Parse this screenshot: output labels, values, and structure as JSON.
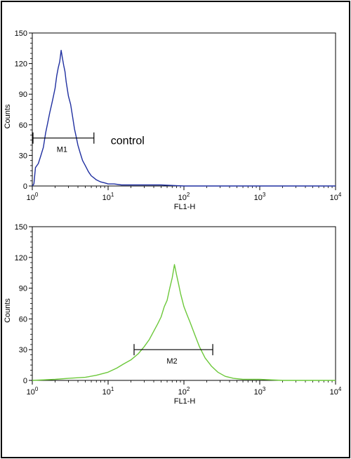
{
  "chart_data": [
    {
      "type": "line",
      "xscale": "log",
      "xlim": [
        1,
        10000
      ],
      "ylim": [
        0,
        150
      ],
      "xlabel": "FL1-H",
      "ylabel": "Counts",
      "yticks": [
        "0",
        "30",
        "60",
        "90",
        "120",
        "150"
      ],
      "xticks": [
        {
          "base": "10",
          "exp": "0"
        },
        {
          "base": "10",
          "exp": "1"
        },
        {
          "base": "10",
          "exp": "2"
        },
        {
          "base": "10",
          "exp": "3"
        },
        {
          "base": "10",
          "exp": "4"
        }
      ],
      "series": [
        {
          "color": "#1f2fa0",
          "x": [
            1.0,
            1.05,
            1.1,
            1.2,
            1.3,
            1.4,
            1.5,
            1.6,
            1.7,
            1.8,
            1.9,
            2.0,
            2.1,
            2.2,
            2.3,
            2.4,
            2.5,
            2.6,
            2.7,
            2.8,
            2.9,
            3.0,
            3.2,
            3.4,
            3.6,
            3.8,
            4.0,
            4.3,
            4.6,
            5.0,
            5.5,
            6.0,
            6.5,
            7.0,
            8.0,
            9.0,
            10,
            12,
            15,
            20,
            30,
            50,
            100,
            300,
            1000,
            10000
          ],
          "y": [
            0,
            2,
            18,
            22,
            30,
            38,
            52,
            62,
            72,
            80,
            88,
            96,
            108,
            116,
            122,
            133,
            125,
            118,
            112,
            102,
            95,
            88,
            80,
            68,
            56,
            48,
            40,
            32,
            25,
            20,
            14,
            10,
            8,
            6,
            4,
            3,
            2,
            2,
            1,
            1,
            1,
            1,
            0,
            0,
            0,
            0
          ]
        }
      ],
      "marker": {
        "label": "M1",
        "range": [
          1,
          6.5
        ],
        "level": 47
      },
      "annotation": "control"
    },
    {
      "type": "line",
      "xscale": "log",
      "xlim": [
        1,
        10000
      ],
      "ylim": [
        0,
        150
      ],
      "xlabel": "FL1-H",
      "ylabel": "Counts",
      "yticks": [
        "0",
        "30",
        "60",
        "90",
        "120",
        "150"
      ],
      "xticks": [
        {
          "base": "10",
          "exp": "0"
        },
        {
          "base": "10",
          "exp": "1"
        },
        {
          "base": "10",
          "exp": "2"
        },
        {
          "base": "10",
          "exp": "3"
        },
        {
          "base": "10",
          "exp": "4"
        }
      ],
      "series": [
        {
          "color": "#6cc83a",
          "x": [
            1,
            2,
            3,
            5,
            7,
            10,
            13,
            16,
            20,
            25,
            30,
            35,
            40,
            45,
            50,
            55,
            60,
            65,
            70,
            75,
            80,
            85,
            90,
            100,
            110,
            120,
            140,
            160,
            190,
            230,
            280,
            350,
            450,
            600,
            1000,
            2000,
            10000
          ],
          "y": [
            0,
            1,
            2,
            3,
            5,
            8,
            12,
            16,
            20,
            26,
            33,
            40,
            48,
            55,
            62,
            72,
            78,
            90,
            100,
            113,
            103,
            94,
            85,
            72,
            64,
            57,
            44,
            33,
            22,
            14,
            8,
            4,
            2,
            1,
            1,
            0,
            0
          ]
        }
      ],
      "marker": {
        "label": "M2",
        "range": [
          22,
          240
        ],
        "level": 30
      }
    }
  ]
}
